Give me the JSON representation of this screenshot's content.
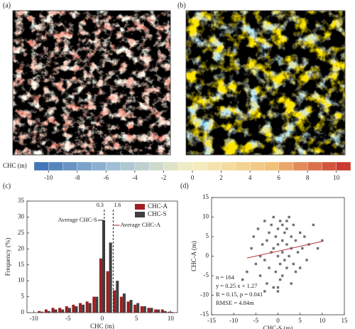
{
  "panel_labels": [
    "(a)",
    "(b)",
    "(c)",
    "(d)"
  ],
  "chart_data": [
    {
      "type": "colorbar",
      "label": "CHC (m)",
      "xlim": [
        -11,
        11
      ],
      "xticks": [
        -10,
        -8,
        -6,
        -4,
        -2,
        0,
        2,
        4,
        6,
        8,
        10
      ],
      "colors": [
        "#3a6fb5",
        "#9fbfd6",
        "#f5f0c2",
        "#f2c277",
        "#c62d2a"
      ]
    },
    {
      "type": "bar",
      "xlabel": "CHC (m)",
      "ylabel": "Frequency (%)",
      "x": [
        -9,
        -8,
        -7,
        -6,
        -5,
        -4,
        -3,
        -2,
        -1,
        0,
        1,
        2,
        3,
        4,
        5,
        6,
        7,
        8,
        9,
        10
      ],
      "series": [
        {
          "name": "CHC-A",
          "color": "#a11d21",
          "values": [
            0.5,
            1,
            1.5,
            1.5,
            2,
            2.5,
            3,
            3.5,
            5,
            17,
            13,
            7,
            5,
            3.5,
            2.5,
            2,
            1.5,
            1,
            1,
            0.3
          ]
        },
        {
          "name": "CHC-S",
          "color": "#404040",
          "values": [
            0.3,
            0.5,
            1,
            1,
            1.5,
            2,
            2.5,
            3,
            5,
            29,
            22,
            10,
            6,
            4,
            3,
            2,
            1.5,
            1,
            0.5,
            0.2
          ]
        }
      ],
      "xlim": [
        -11,
        11
      ],
      "xticks": [
        -10,
        -5,
        0,
        5,
        10
      ],
      "ylim": [
        0,
        35
      ],
      "yticks": [
        0,
        5,
        10,
        15,
        20,
        25,
        30,
        35
      ],
      "vlines": [
        0.3,
        1.6
      ],
      "annotations": [
        "Average CHC-S",
        "Average CHC-A"
      ],
      "legend": "upper right"
    },
    {
      "type": "scatter",
      "xlabel": "CHC-S (m)",
      "ylabel": "CHC-A (m)",
      "color": "#707070",
      "x": [
        -8,
        -7,
        -6,
        -5.5,
        -5,
        -4.5,
        -4,
        -4,
        -3.5,
        -3,
        -3,
        -2.5,
        -2.5,
        -2,
        -2,
        -1.5,
        -1.5,
        -1,
        -1,
        -1,
        -0.5,
        -0.5,
        0,
        0,
        0,
        0,
        0.5,
        0.5,
        0.5,
        1,
        1,
        1,
        1,
        1.5,
        1.5,
        2,
        2,
        2,
        2.5,
        2.5,
        3,
        3,
        3,
        3.5,
        3.5,
        4,
        4,
        4.5,
        5,
        5,
        5.5,
        6,
        6.5,
        7,
        8,
        9,
        10,
        -3,
        0,
        2
      ],
      "y": [
        -6,
        -4,
        2,
        5,
        -2,
        7,
        0,
        -5,
        3,
        9,
        -1,
        4,
        -7,
        6,
        -3,
        1,
        8,
        -8,
        2,
        10,
        -4,
        5,
        -9,
        0,
        3,
        7,
        -2,
        9,
        -6,
        1,
        4,
        -5,
        8,
        -1,
        6,
        3,
        -3,
        7,
        0,
        10,
        2,
        -7,
        5,
        -2,
        8,
        4,
        -4,
        1,
        6,
        -3,
        2,
        5,
        -1,
        3,
        8,
        2,
        4,
        -9,
        -8,
        9
      ],
      "fit_line": {
        "x": [
          -7,
          10
        ],
        "y": [
          -0.48,
          3.77
        ],
        "color": "#b8323a"
      },
      "xlim": [
        -15,
        15
      ],
      "xticks": [
        -15,
        -10,
        -5,
        0,
        5,
        10,
        15
      ],
      "ylim": [
        -15,
        15
      ],
      "yticks": [
        -15,
        -10,
        -5,
        0,
        5,
        10,
        15
      ],
      "annotations": [
        "n = 164",
        "y = 0.25 x + 1.27",
        "R = 0.15, p = 0.041",
        "RMSE = 4.84m"
      ]
    }
  ]
}
